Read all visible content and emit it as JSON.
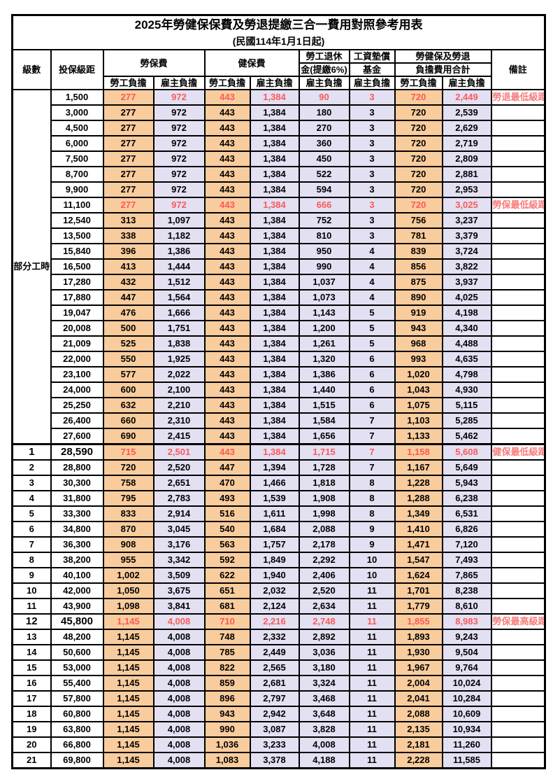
{
  "table": {
    "title": "2025年勞健保保費及勞退提繳三合一費用對照參考用表",
    "subtitle": "(民國114年1月1日起)",
    "columns": {
      "level": "級數",
      "bracket": "投保級距",
      "labor_insurance": "勞保費",
      "health_insurance": "健保費",
      "pension_line1": "勞工退休",
      "pension_line2": "金(提繳6%)",
      "wage_fund_line1": "工資墊償",
      "wage_fund_line2": "基金",
      "total_line1": "勞健保及勞退",
      "total_line2": "負擔費用合計",
      "remark": "備註"
    },
    "sub_headers": {
      "worker": "勞工負擔",
      "employer": "雇主負擔"
    },
    "colors": {
      "worker_bg": "#F9CC9D",
      "employer_bg": "#E2E0F2",
      "red": "#FA5A5A",
      "remark_red": "#F77E7E"
    },
    "part_time_label": "部分工時",
    "rows": [
      {
        "level": "",
        "bracket": "1,500",
        "values": [
          "277",
          "972",
          "443",
          "1,384",
          "90",
          "3",
          "720",
          "2,449"
        ],
        "remark": "勞退最低級距",
        "red": true,
        "bold": false,
        "sect": false
      },
      {
        "level": "",
        "bracket": "3,000",
        "values": [
          "277",
          "972",
          "443",
          "1,384",
          "180",
          "3",
          "720",
          "2,539"
        ],
        "remark": "",
        "red": false,
        "bold": false,
        "sect": false
      },
      {
        "level": "",
        "bracket": "4,500",
        "values": [
          "277",
          "972",
          "443",
          "1,384",
          "270",
          "3",
          "720",
          "2,629"
        ],
        "remark": "",
        "red": false,
        "bold": false,
        "sect": false
      },
      {
        "level": "",
        "bracket": "6,000",
        "values": [
          "277",
          "972",
          "443",
          "1,384",
          "360",
          "3",
          "720",
          "2,719"
        ],
        "remark": "",
        "red": false,
        "bold": false,
        "sect": false
      },
      {
        "level": "",
        "bracket": "7,500",
        "values": [
          "277",
          "972",
          "443",
          "1,384",
          "450",
          "3",
          "720",
          "2,809"
        ],
        "remark": "",
        "red": false,
        "bold": false,
        "sect": false
      },
      {
        "level": "",
        "bracket": "8,700",
        "values": [
          "277",
          "972",
          "443",
          "1,384",
          "522",
          "3",
          "720",
          "2,881"
        ],
        "remark": "",
        "red": false,
        "bold": false,
        "sect": false
      },
      {
        "level": "",
        "bracket": "9,900",
        "values": [
          "277",
          "972",
          "443",
          "1,384",
          "594",
          "3",
          "720",
          "2,953"
        ],
        "remark": "",
        "red": false,
        "bold": false,
        "sect": false
      },
      {
        "level": "",
        "bracket": "11,100",
        "values": [
          "277",
          "972",
          "443",
          "1,384",
          "666",
          "3",
          "720",
          "3,025"
        ],
        "remark": "勞保最低級距",
        "red": true,
        "bold": false,
        "sect": false
      },
      {
        "level": "",
        "bracket": "12,540",
        "values": [
          "313",
          "1,097",
          "443",
          "1,384",
          "752",
          "3",
          "756",
          "3,237"
        ],
        "remark": "",
        "red": false,
        "bold": false,
        "sect": false
      },
      {
        "level": "",
        "bracket": "13,500",
        "values": [
          "338",
          "1,182",
          "443",
          "1,384",
          "810",
          "3",
          "781",
          "3,379"
        ],
        "remark": "",
        "red": false,
        "bold": false,
        "sect": false
      },
      {
        "level": "",
        "bracket": "15,840",
        "values": [
          "396",
          "1,386",
          "443",
          "1,384",
          "950",
          "4",
          "839",
          "3,724"
        ],
        "remark": "",
        "red": false,
        "bold": false,
        "sect": false
      },
      {
        "level": "",
        "bracket": "16,500",
        "values": [
          "413",
          "1,444",
          "443",
          "1,384",
          "990",
          "4",
          "856",
          "3,822"
        ],
        "remark": "",
        "red": false,
        "bold": false,
        "sect": false
      },
      {
        "level": "",
        "bracket": "17,280",
        "values": [
          "432",
          "1,512",
          "443",
          "1,384",
          "1,037",
          "4",
          "875",
          "3,937"
        ],
        "remark": "",
        "red": false,
        "bold": false,
        "sect": false
      },
      {
        "level": "",
        "bracket": "17,880",
        "values": [
          "447",
          "1,564",
          "443",
          "1,384",
          "1,073",
          "4",
          "890",
          "4,025"
        ],
        "remark": "",
        "red": false,
        "bold": false,
        "sect": false
      },
      {
        "level": "",
        "bracket": "19,047",
        "values": [
          "476",
          "1,666",
          "443",
          "1,384",
          "1,143",
          "5",
          "919",
          "4,198"
        ],
        "remark": "",
        "red": false,
        "bold": false,
        "sect": false
      },
      {
        "level": "",
        "bracket": "20,008",
        "values": [
          "500",
          "1,751",
          "443",
          "1,384",
          "1,200",
          "5",
          "943",
          "4,340"
        ],
        "remark": "",
        "red": false,
        "bold": false,
        "sect": false
      },
      {
        "level": "",
        "bracket": "21,009",
        "values": [
          "525",
          "1,838",
          "443",
          "1,384",
          "1,261",
          "5",
          "968",
          "4,488"
        ],
        "remark": "",
        "red": false,
        "bold": false,
        "sect": false
      },
      {
        "level": "",
        "bracket": "22,000",
        "values": [
          "550",
          "1,925",
          "443",
          "1,384",
          "1,320",
          "6",
          "993",
          "4,635"
        ],
        "remark": "",
        "red": false,
        "bold": false,
        "sect": false
      },
      {
        "level": "",
        "bracket": "23,100",
        "values": [
          "577",
          "2,022",
          "443",
          "1,384",
          "1,386",
          "6",
          "1,020",
          "4,798"
        ],
        "remark": "",
        "red": false,
        "bold": false,
        "sect": false
      },
      {
        "level": "",
        "bracket": "24,000",
        "values": [
          "600",
          "2,100",
          "443",
          "1,384",
          "1,440",
          "6",
          "1,043",
          "4,930"
        ],
        "remark": "",
        "red": false,
        "bold": false,
        "sect": false
      },
      {
        "level": "",
        "bracket": "25,250",
        "values": [
          "632",
          "2,210",
          "443",
          "1,384",
          "1,515",
          "6",
          "1,075",
          "5,115"
        ],
        "remark": "",
        "red": false,
        "bold": false,
        "sect": false
      },
      {
        "level": "",
        "bracket": "26,400",
        "values": [
          "660",
          "2,310",
          "443",
          "1,384",
          "1,584",
          "7",
          "1,103",
          "5,285"
        ],
        "remark": "",
        "red": false,
        "bold": false,
        "sect": false
      },
      {
        "level": "",
        "bracket": "27,600",
        "values": [
          "690",
          "2,415",
          "443",
          "1,384",
          "1,656",
          "7",
          "1,133",
          "5,462"
        ],
        "remark": "",
        "red": false,
        "bold": false,
        "sect": false
      },
      {
        "level": "1",
        "bracket": "28,590",
        "values": [
          "715",
          "2,501",
          "443",
          "1,384",
          "1,715",
          "7",
          "1,158",
          "5,608"
        ],
        "remark": "健保最低級距",
        "red": true,
        "bold": true,
        "sect": true
      },
      {
        "level": "2",
        "bracket": "28,800",
        "values": [
          "720",
          "2,520",
          "447",
          "1,394",
          "1,728",
          "7",
          "1,167",
          "5,649"
        ],
        "remark": "",
        "red": false,
        "bold": false,
        "sect": false
      },
      {
        "level": "3",
        "bracket": "30,300",
        "values": [
          "758",
          "2,651",
          "470",
          "1,466",
          "1,818",
          "8",
          "1,228",
          "5,943"
        ],
        "remark": "",
        "red": false,
        "bold": false,
        "sect": false
      },
      {
        "level": "4",
        "bracket": "31,800",
        "values": [
          "795",
          "2,783",
          "493",
          "1,539",
          "1,908",
          "8",
          "1,288",
          "6,238"
        ],
        "remark": "",
        "red": false,
        "bold": false,
        "sect": false
      },
      {
        "level": "5",
        "bracket": "33,300",
        "values": [
          "833",
          "2,914",
          "516",
          "1,611",
          "1,998",
          "8",
          "1,349",
          "6,531"
        ],
        "remark": "",
        "red": false,
        "bold": false,
        "sect": false
      },
      {
        "level": "6",
        "bracket": "34,800",
        "values": [
          "870",
          "3,045",
          "540",
          "1,684",
          "2,088",
          "9",
          "1,410",
          "6,826"
        ],
        "remark": "",
        "red": false,
        "bold": false,
        "sect": false
      },
      {
        "level": "7",
        "bracket": "36,300",
        "values": [
          "908",
          "3,176",
          "563",
          "1,757",
          "2,178",
          "9",
          "1,471",
          "7,120"
        ],
        "remark": "",
        "red": false,
        "bold": false,
        "sect": false
      },
      {
        "level": "8",
        "bracket": "38,200",
        "values": [
          "955",
          "3,342",
          "592",
          "1,849",
          "2,292",
          "10",
          "1,547",
          "7,493"
        ],
        "remark": "",
        "red": false,
        "bold": false,
        "sect": false
      },
      {
        "level": "9",
        "bracket": "40,100",
        "values": [
          "1,002",
          "3,509",
          "622",
          "1,940",
          "2,406",
          "10",
          "1,624",
          "7,865"
        ],
        "remark": "",
        "red": false,
        "bold": false,
        "sect": false
      },
      {
        "level": "10",
        "bracket": "42,000",
        "values": [
          "1,050",
          "3,675",
          "651",
          "2,032",
          "2,520",
          "11",
          "1,701",
          "8,238"
        ],
        "remark": "",
        "red": false,
        "bold": false,
        "sect": false
      },
      {
        "level": "11",
        "bracket": "43,900",
        "values": [
          "1,098",
          "3,841",
          "681",
          "2,124",
          "2,634",
          "11",
          "1,779",
          "8,610"
        ],
        "remark": "",
        "red": false,
        "bold": false,
        "sect": false
      },
      {
        "level": "12",
        "bracket": "45,800",
        "values": [
          "1,145",
          "4,008",
          "710",
          "2,216",
          "2,748",
          "11",
          "1,855",
          "8,983"
        ],
        "remark": "勞保最高級距",
        "red": true,
        "bold": true,
        "sect": false
      },
      {
        "level": "13",
        "bracket": "48,200",
        "values": [
          "1,145",
          "4,008",
          "748",
          "2,332",
          "2,892",
          "11",
          "1,893",
          "9,243"
        ],
        "remark": "",
        "red": false,
        "bold": false,
        "sect": false
      },
      {
        "level": "14",
        "bracket": "50,600",
        "values": [
          "1,145",
          "4,008",
          "785",
          "2,449",
          "3,036",
          "11",
          "1,930",
          "9,504"
        ],
        "remark": "",
        "red": false,
        "bold": false,
        "sect": false
      },
      {
        "level": "15",
        "bracket": "53,000",
        "values": [
          "1,145",
          "4,008",
          "822",
          "2,565",
          "3,180",
          "11",
          "1,967",
          "9,764"
        ],
        "remark": "",
        "red": false,
        "bold": false,
        "sect": false
      },
      {
        "level": "16",
        "bracket": "55,400",
        "values": [
          "1,145",
          "4,008",
          "859",
          "2,681",
          "3,324",
          "11",
          "2,004",
          "10,024"
        ],
        "remark": "",
        "red": false,
        "bold": false,
        "sect": false
      },
      {
        "level": "17",
        "bracket": "57,800",
        "values": [
          "1,145",
          "4,008",
          "896",
          "2,797",
          "3,468",
          "11",
          "2,041",
          "10,284"
        ],
        "remark": "",
        "red": false,
        "bold": false,
        "sect": false
      },
      {
        "level": "18",
        "bracket": "60,800",
        "values": [
          "1,145",
          "4,008",
          "943",
          "2,942",
          "3,648",
          "11",
          "2,088",
          "10,609"
        ],
        "remark": "",
        "red": false,
        "bold": false,
        "sect": false
      },
      {
        "level": "19",
        "bracket": "63,800",
        "values": [
          "1,145",
          "4,008",
          "990",
          "3,087",
          "3,828",
          "11",
          "2,135",
          "10,934"
        ],
        "remark": "",
        "red": false,
        "bold": false,
        "sect": false
      },
      {
        "level": "20",
        "bracket": "66,800",
        "values": [
          "1,145",
          "4,008",
          "1,036",
          "3,233",
          "4,008",
          "11",
          "2,181",
          "11,260"
        ],
        "remark": "",
        "red": false,
        "bold": false,
        "sect": false
      },
      {
        "level": "21",
        "bracket": "69,800",
        "values": [
          "1,145",
          "4,008",
          "1,083",
          "3,378",
          "4,188",
          "11",
          "2,228",
          "11,585"
        ],
        "remark": "",
        "red": false,
        "bold": false,
        "sect": false
      }
    ]
  }
}
